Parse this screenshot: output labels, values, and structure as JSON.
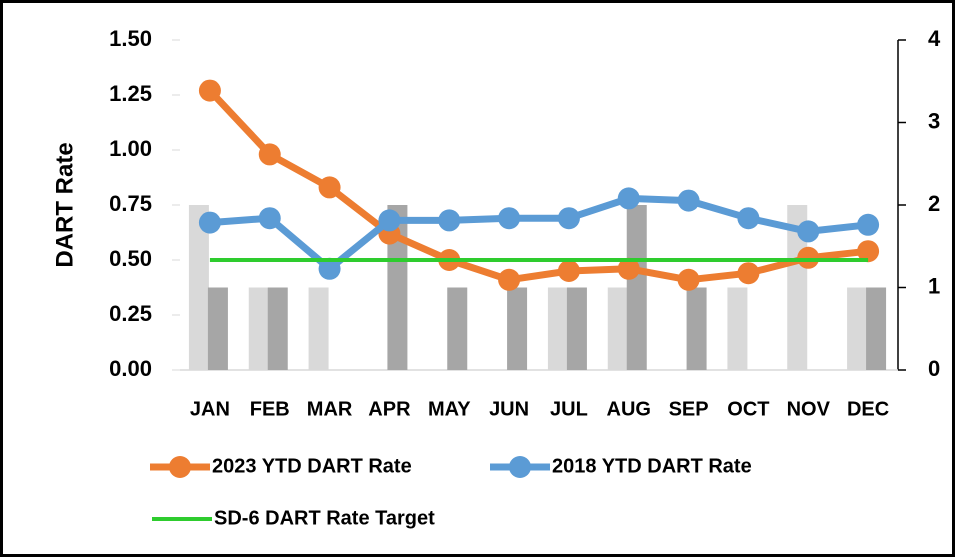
{
  "chart_data": {
    "type": "combo",
    "y_label": "DART Rate",
    "categories": [
      "JAN",
      "FEB",
      "MAR",
      "APR",
      "MAY",
      "JUN",
      "JUL",
      "AUG",
      "SEP",
      "OCT",
      "NOV",
      "DEC"
    ],
    "ylim": [
      0,
      1.5
    ],
    "yticks": [
      {
        "value": 0,
        "label": "0.00"
      },
      {
        "value": 0.25,
        "label": "0.25"
      },
      {
        "value": 0.5,
        "label": "0.50"
      },
      {
        "value": 0.75,
        "label": "0.75"
      },
      {
        "value": 1,
        "label": "1.00"
      },
      {
        "value": 1.25,
        "label": "1.25"
      },
      {
        "value": 1.5,
        "label": "1.50"
      }
    ],
    "y2lim": [
      0,
      4
    ],
    "y2ticks": [
      0,
      1,
      2,
      3,
      4
    ],
    "series": [
      {
        "type": "bar",
        "axis": "y2",
        "color": "#d9d9d9",
        "values": [
          2,
          1,
          1,
          0,
          0,
          0,
          1,
          1,
          0,
          1,
          2,
          1
        ]
      },
      {
        "type": "bar",
        "axis": "y2",
        "color": "#a6a6a6",
        "values": [
          1,
          1,
          0,
          2,
          1,
          1,
          1,
          2,
          1,
          0,
          0,
          1
        ]
      },
      {
        "type": "line",
        "name": "2023 YTD DART Rate",
        "color": "#ed7d31",
        "marker": true,
        "values": [
          1.27,
          0.98,
          0.83,
          0.62,
          0.5,
          0.41,
          0.45,
          0.46,
          0.41,
          0.44,
          0.51,
          0.54
        ]
      },
      {
        "type": "line",
        "name": "2018 YTD DART Rate",
        "color": "#5b9bd5",
        "marker": true,
        "values": [
          0.67,
          0.69,
          0.46,
          0.68,
          0.68,
          0.69,
          0.69,
          0.78,
          0.77,
          0.69,
          0.63,
          0.66
        ]
      },
      {
        "type": "line",
        "name": "SD-6 DART Rate Target",
        "color": "#2ecc2e",
        "marker": false,
        "values": [
          0.5,
          0.5,
          0.5,
          0.5,
          0.5,
          0.5,
          0.5,
          0.5,
          0.5,
          0.5,
          0.5,
          0.5
        ]
      }
    ]
  }
}
